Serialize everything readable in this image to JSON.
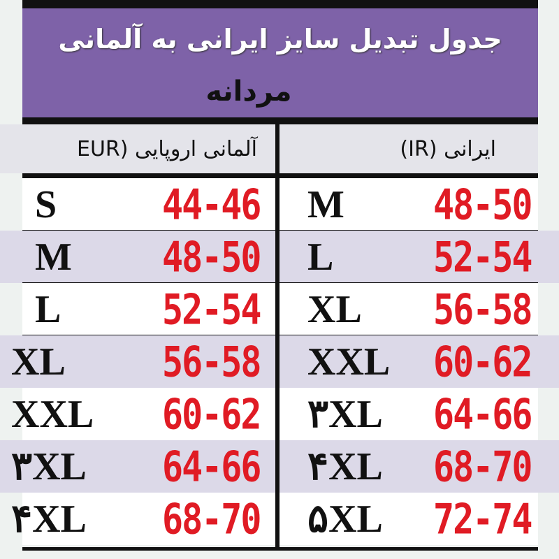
{
  "title": "جدول تبدیل سایز ایرانی به آلمانی",
  "subtitle": "مردانه",
  "columns": {
    "eur": "آلمانی اروپایی (EUR",
    "ir": "ایرانی (IR)"
  },
  "rows": [
    {
      "eur_size": "S",
      "eur_range": "44-46",
      "ir_size": "M",
      "ir_range": "48-50"
    },
    {
      "eur_size": "M",
      "eur_range": "48-50",
      "ir_size": "L",
      "ir_range": "52-54"
    },
    {
      "eur_size": "L",
      "eur_range": "52-54",
      "ir_size": "XL",
      "ir_range": "56-58"
    },
    {
      "eur_size": "XL",
      "eur_range": "56-58",
      "ir_size": "XXL",
      "ir_range": "60-62"
    },
    {
      "eur_size": "XXL",
      "eur_range": "60-62",
      "ir_size": "۳XL",
      "ir_range": "64-66"
    },
    {
      "eur_size": "۳XL",
      "eur_range": "64-66",
      "ir_size": "۴XL",
      "ir_range": "68-70"
    },
    {
      "eur_size": "۴XL",
      "eur_range": "68-70",
      "ir_size": "۵XL",
      "ir_range": "72-74"
    }
  ],
  "colors": {
    "header": "#7e62a8",
    "range_text": "#e01b24",
    "alt_row": "#dcd9e8"
  }
}
